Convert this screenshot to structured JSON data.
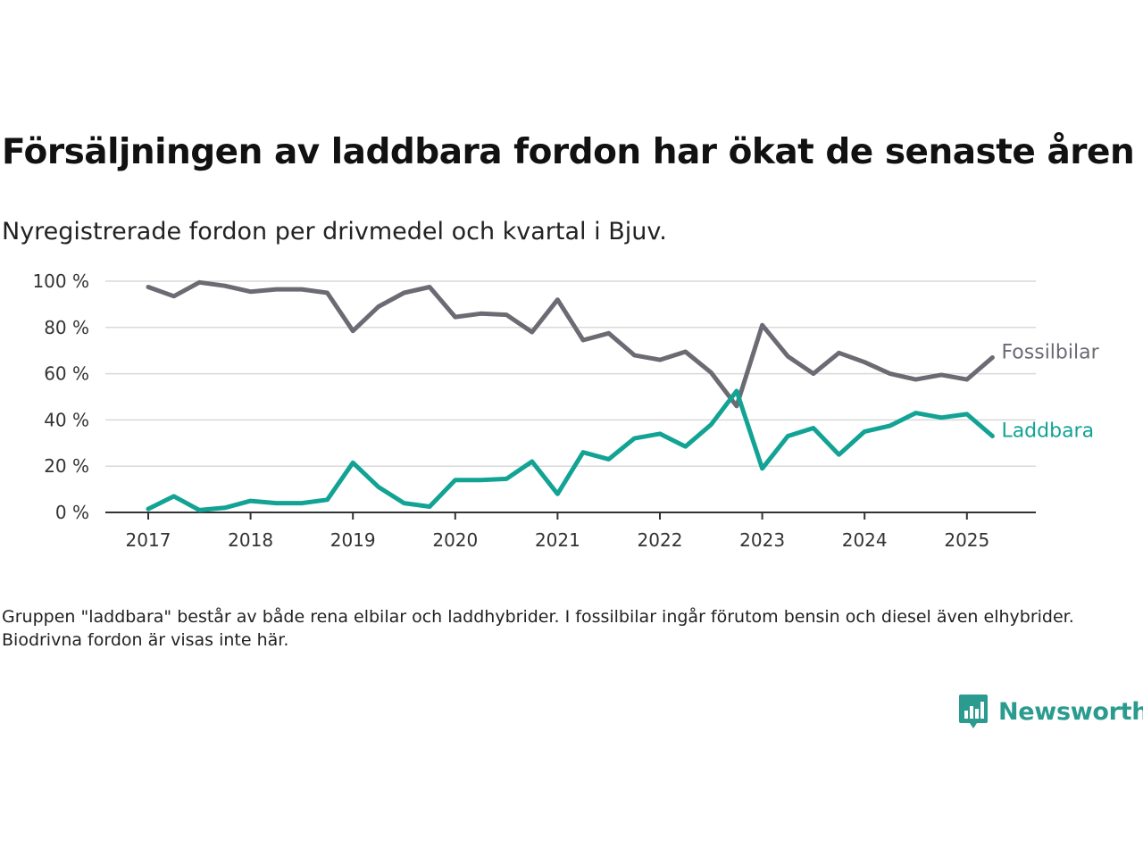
{
  "title": "Försäljningen av laddbara fordon har ökat de senaste åren",
  "subtitle": "Nyregistrerade fordon per drivmedel och kvartal i Bjuv.",
  "note": "Gruppen \"laddbara\" består av både rena elbilar och laddhybrider. I fossilbilar ingår förutom bensin och diesel även elhybrider. Biodrivna fordon är visas inte här.",
  "logo": {
    "text": "Newsworthy",
    "icon": "newsworthy-logo-icon"
  },
  "colors": {
    "fossil": "#6b6b73",
    "laddbara": "#12a394",
    "grid": "#d9d9d9",
    "axis": "#333333"
  },
  "chart_data": {
    "type": "line",
    "y_ticks": [
      {
        "value": 0,
        "label": "0 %"
      },
      {
        "value": 20,
        "label": "20 %"
      },
      {
        "value": 40,
        "label": "40 %"
      },
      {
        "value": 60,
        "label": "60 %"
      },
      {
        "value": 80,
        "label": "80 %"
      },
      {
        "value": 100,
        "label": "100 %"
      }
    ],
    "x_ticks": [
      "2017",
      "2018",
      "2019",
      "2020",
      "2021",
      "2022",
      "2023",
      "2024",
      "2025"
    ],
    "ylim": [
      0,
      100
    ],
    "grid": true,
    "x": [
      "2017 Q1",
      "2017 Q2",
      "2017 Q3",
      "2017 Q4",
      "2018 Q1",
      "2018 Q2",
      "2018 Q3",
      "2018 Q4",
      "2019 Q1",
      "2019 Q2",
      "2019 Q3",
      "2019 Q4",
      "2020 Q1",
      "2020 Q2",
      "2020 Q3",
      "2020 Q4",
      "2021 Q1",
      "2021 Q2",
      "2021 Q3",
      "2021 Q4",
      "2022 Q1",
      "2022 Q2",
      "2022 Q3",
      "2022 Q4",
      "2023 Q1",
      "2023 Q2",
      "2023 Q3",
      "2023 Q4",
      "2024 Q1",
      "2024 Q2",
      "2024 Q3",
      "2024 Q4",
      "2025 Q1",
      "2025 Q2"
    ],
    "series": [
      {
        "name": "Fossilbilar",
        "color": "#6b6b73",
        "values": [
          97.5,
          93.5,
          99.5,
          98,
          95.5,
          96.5,
          96.5,
          95,
          78.5,
          89,
          95,
          97.5,
          84.5,
          86,
          85.5,
          78,
          92,
          74.5,
          77.5,
          68,
          66,
          69.5,
          60.5,
          46,
          81,
          67.5,
          60,
          69,
          65,
          60,
          57.5,
          59.5,
          57.5,
          67
        ]
      },
      {
        "name": "Laddbara",
        "color": "#12a394",
        "values": [
          1.5,
          7,
          1,
          2,
          5,
          4,
          4,
          5.5,
          21.5,
          11,
          4,
          2.5,
          14,
          14,
          14.5,
          22,
          8,
          26,
          23,
          32,
          34,
          28.5,
          38,
          52.5,
          19,
          33,
          36.5,
          25,
          35,
          37.5,
          43,
          41,
          42.5,
          33
        ]
      }
    ]
  }
}
